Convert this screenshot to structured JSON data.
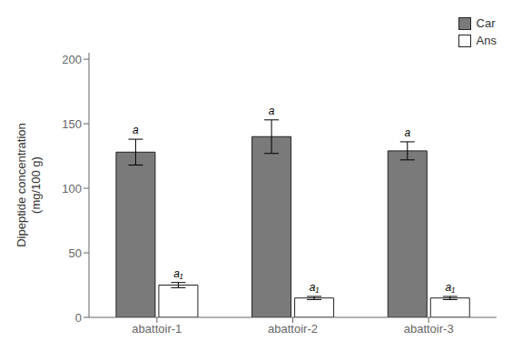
{
  "chart_data": {
    "type": "bar",
    "categories": [
      "abattoir-1",
      "abattoir-2",
      "abattoir-3"
    ],
    "series": [
      {
        "name": "Car",
        "color": "#7a7a7a",
        "values": [
          128,
          140,
          129
        ],
        "errors": [
          10,
          13,
          7
        ],
        "annotations": [
          "a",
          "a",
          "a"
        ]
      },
      {
        "name": "Ans",
        "color": "#ffffff",
        "values": [
          25,
          15,
          15
        ],
        "errors": [
          2.0,
          1.2,
          1.2
        ],
        "annotations": [
          "a₁",
          "a₁",
          "a₁"
        ]
      }
    ],
    "ylabel": "Dipeptide concentration\n(mg/100 g)",
    "ylim": [
      0,
      205
    ],
    "yticks": [
      0,
      50,
      100,
      150,
      200
    ],
    "grid": false,
    "legend": "upper right"
  }
}
